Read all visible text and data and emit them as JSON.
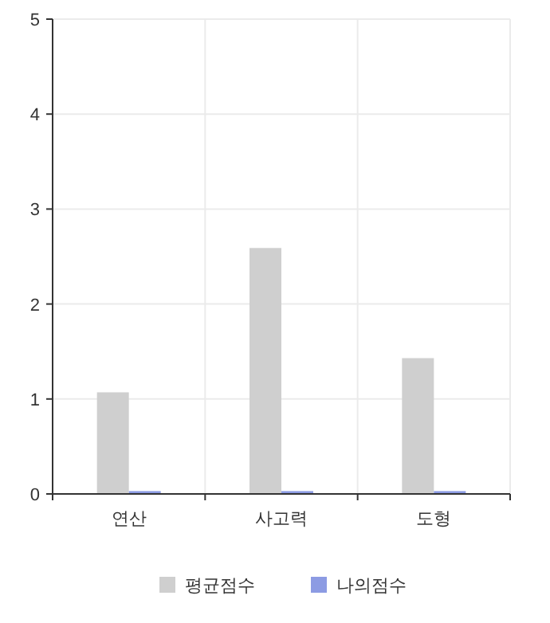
{
  "chart_data": {
    "type": "bar",
    "categories": [
      "연산",
      "사고력",
      "도형"
    ],
    "series": [
      {
        "name": "평균점수",
        "color": "#cfcfcf",
        "values": [
          1.07,
          2.59,
          1.43
        ]
      },
      {
        "name": "나의점수",
        "color": "#8c9be3",
        "values": [
          0.03,
          0.03,
          0.03
        ]
      }
    ],
    "ylim": [
      0,
      5
    ],
    "yticks": [
      0,
      1,
      2,
      3,
      4,
      5
    ],
    "grid": true,
    "legend": "bottom"
  }
}
